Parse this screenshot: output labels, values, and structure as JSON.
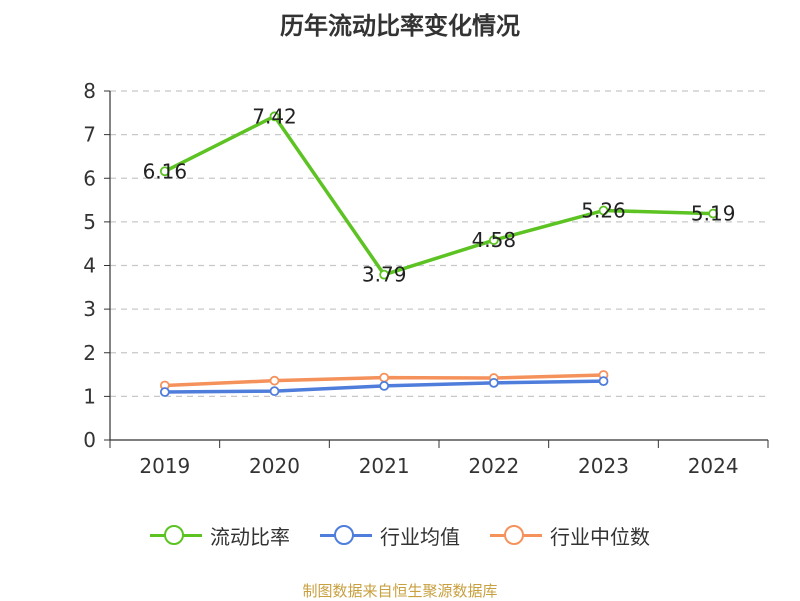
{
  "chart_data": {
    "type": "line",
    "title": "历年流动比率变化情况",
    "categories": [
      "2019",
      "2020",
      "2021",
      "2022",
      "2023",
      "2024"
    ],
    "ylim": [
      0,
      8
    ],
    "yticks": [
      0,
      1,
      2,
      3,
      4,
      5,
      6,
      7,
      8
    ],
    "grid": true,
    "legend_position": "bottom",
    "series": [
      {
        "name": "流动比率",
        "color": "#5cc323",
        "values": [
          6.16,
          7.42,
          3.79,
          4.58,
          5.26,
          5.19
        ],
        "data_labels": [
          "6.16",
          "7.42",
          "3.79",
          "4.58",
          "5.26",
          "5.19"
        ]
      },
      {
        "name": "行业均值",
        "color": "#4f7ddb",
        "values": [
          1.1,
          1.12,
          1.24,
          1.31,
          1.35,
          null
        ]
      },
      {
        "name": "行业中位数",
        "color": "#f5925c",
        "values": [
          1.25,
          1.36,
          1.43,
          1.42,
          1.49,
          null
        ]
      }
    ]
  },
  "source_text": "制图数据来自恒生聚源数据库"
}
